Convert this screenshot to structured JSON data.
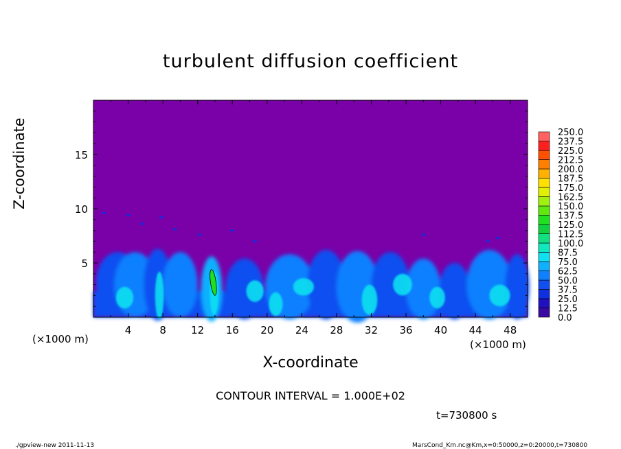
{
  "chart_data": {
    "type": "heatmap",
    "title": "turbulent diffusion coefficient",
    "xlabel": "X-coordinate",
    "ylabel": "Z-coordinate",
    "x_unit": "(×1000 m)",
    "xlim": [
      0,
      50
    ],
    "ylim": [
      0,
      20
    ],
    "x_ticks": [
      4,
      8,
      12,
      16,
      20,
      24,
      28,
      32,
      36,
      40,
      44,
      48
    ],
    "y_ticks": [
      5,
      10,
      15
    ],
    "colorbar": {
      "levels": [
        "0.0",
        "12.5",
        "25.0",
        "37.5",
        "50.0",
        "62.5",
        "75.0",
        "87.5",
        "100.0",
        "112.5",
        "125.0",
        "137.5",
        "150.0",
        "162.5",
        "175.0",
        "187.5",
        "200.0",
        "212.5",
        "225.0",
        "237.5",
        "250.0"
      ],
      "colors": [
        "#3a0aa0",
        "#2010c0",
        "#1030e0",
        "#1050f0",
        "#1080ff",
        "#10b0ff",
        "#10e0f0",
        "#10e8c0",
        "#10e080",
        "#10d040",
        "#20e020",
        "#60e810",
        "#a0f010",
        "#e0f000",
        "#ffe000",
        "#ffb000",
        "#ff8000",
        "#ff5000",
        "#ff2020",
        "#ff6060"
      ]
    },
    "background_color": "#7a00a8",
    "contour_interval": "CONTOUR INTERVAL = 1.000E+02",
    "time_label": "t=730800 s"
  },
  "footer": {
    "left": "./gpview-new  2011-11-13",
    "right": "MarsCond_Km.nc@Km,x=0:50000,z=0:20000,t=730800"
  }
}
